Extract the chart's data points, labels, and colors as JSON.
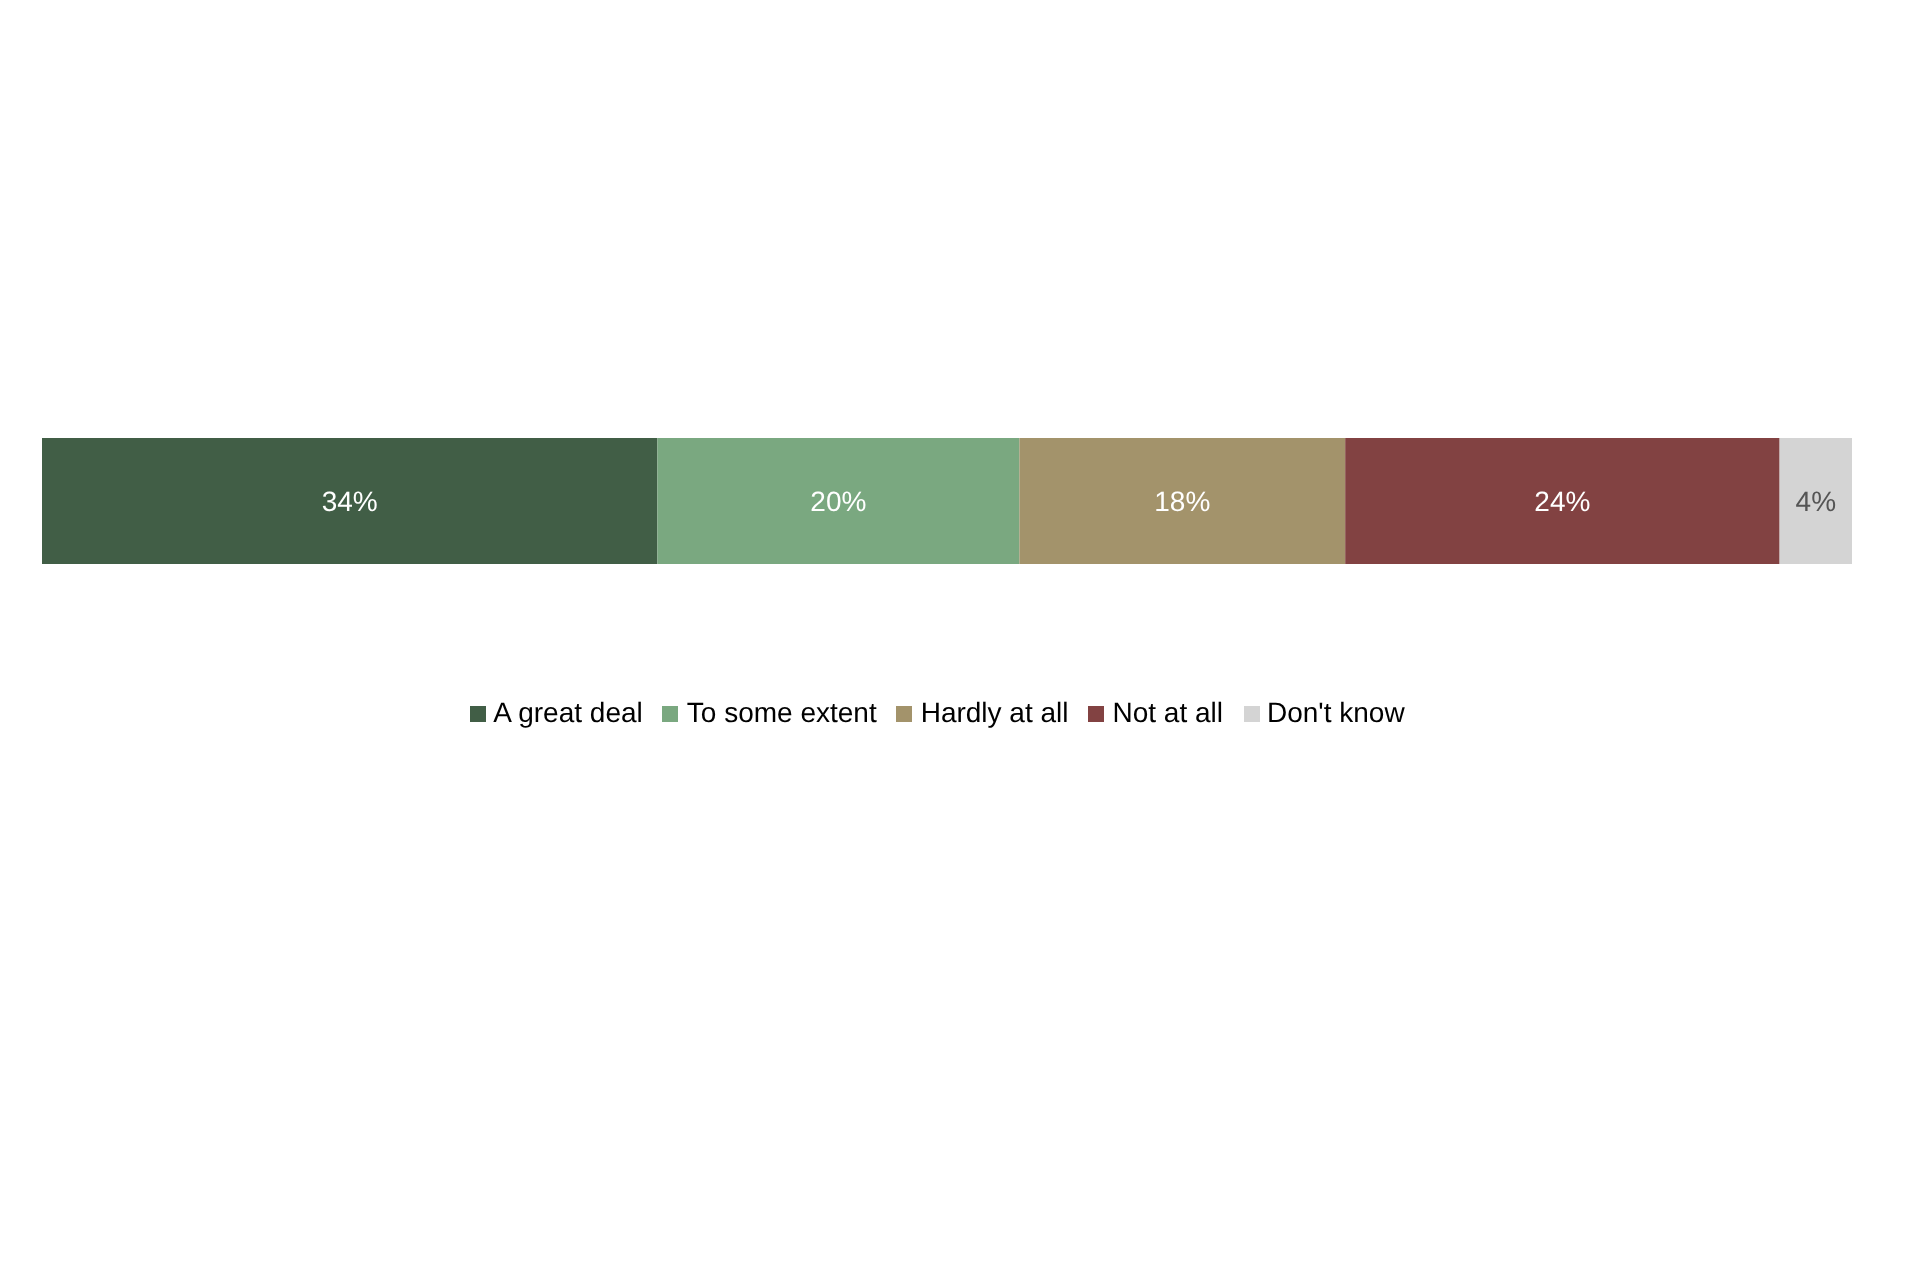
{
  "chart_data": {
    "type": "bar",
    "orientation": "horizontal",
    "stacked": true,
    "categories": [
      null
    ],
    "series": [
      {
        "name": "A great deal",
        "color": "#415e46",
        "values": [
          34
        ],
        "value_labels": [
          "34%"
        ]
      },
      {
        "name": "To some extent",
        "color": "#7aa880",
        "values": [
          20
        ],
        "value_labels": [
          "20%"
        ]
      },
      {
        "name": "Hardly at all",
        "color": "#a3936b",
        "values": [
          18
        ],
        "value_labels": [
          "18%"
        ]
      },
      {
        "name": "Not at all",
        "color": "#824242",
        "values": [
          24
        ],
        "value_labels": [
          "24%"
        ]
      },
      {
        "name": "Don't know",
        "color": "#d4d4d4",
        "values": [
          4
        ],
        "value_labels": [
          "4%"
        ]
      }
    ],
    "legend": "bottom",
    "grid": false
  }
}
